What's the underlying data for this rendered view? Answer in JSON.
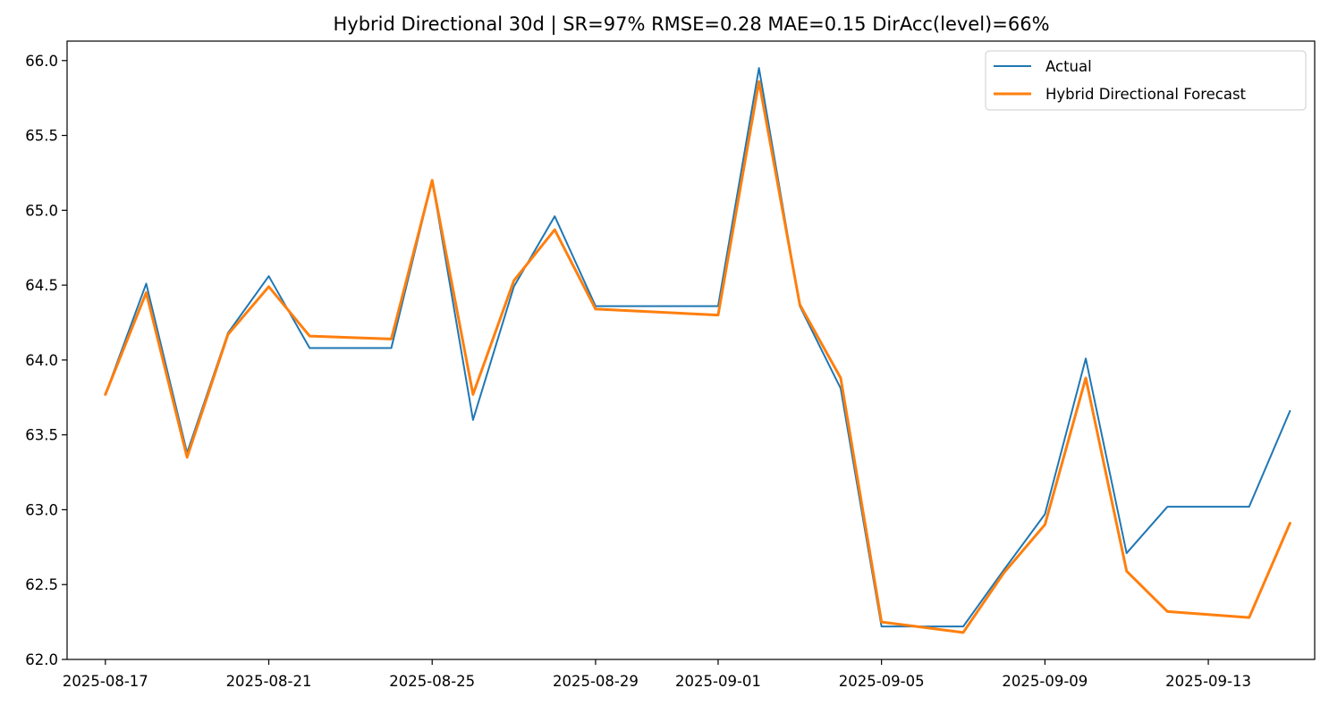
{
  "chart_data": {
    "type": "line",
    "title": "Hybrid Directional 30d | SR=97% RMSE=0.28 MAE=0.15 DirAcc(level)=66%",
    "xlabel": "",
    "ylabel": "",
    "x": [
      "2025-08-17",
      "2025-08-18",
      "2025-08-19",
      "2025-08-20",
      "2025-08-21",
      "2025-08-22",
      "2025-08-24",
      "2025-08-25",
      "2025-08-26",
      "2025-08-27",
      "2025-08-28",
      "2025-08-29",
      "2025-09-01",
      "2025-09-02",
      "2025-09-03",
      "2025-09-04",
      "2025-09-05",
      "2025-09-07",
      "2025-09-08",
      "2025-09-09",
      "2025-09-10",
      "2025-09-11",
      "2025-09-12",
      "2025-09-14",
      "2025-09-15"
    ],
    "x_ticks": [
      "2025-08-17",
      "2025-08-21",
      "2025-08-25",
      "2025-08-29",
      "2025-09-01",
      "2025-09-05",
      "2025-09-09",
      "2025-09-13"
    ],
    "y_ticks": [
      "62.0",
      "62.5",
      "63.0",
      "63.5",
      "64.0",
      "64.5",
      "65.0",
      "65.5",
      "66.0"
    ],
    "xlim": [
      "2025-08-16T01:30",
      "2025-09-15T14:30"
    ],
    "ylim": [
      62.0,
      66.13
    ],
    "grid": false,
    "legend_position": "top-right",
    "series": [
      {
        "name": "Actual",
        "color": "#1f77b4",
        "values": [
          63.77,
          64.51,
          63.38,
          64.18,
          64.56,
          64.08,
          64.08,
          65.2,
          63.6,
          64.49,
          64.96,
          64.36,
          64.36,
          65.95,
          64.36,
          63.81,
          62.22,
          62.22,
          62.6,
          62.97,
          64.01,
          62.71,
          63.02,
          63.02,
          63.66
        ]
      },
      {
        "name": "Hybrid Directional Forecast",
        "color": "#ff7f0e",
        "values": [
          63.77,
          64.45,
          63.35,
          64.17,
          64.49,
          64.16,
          64.14,
          65.2,
          63.77,
          64.53,
          64.87,
          64.34,
          64.3,
          65.86,
          64.37,
          63.88,
          62.25,
          62.18,
          62.58,
          62.9,
          63.88,
          62.59,
          62.32,
          62.28,
          62.91
        ]
      }
    ]
  }
}
